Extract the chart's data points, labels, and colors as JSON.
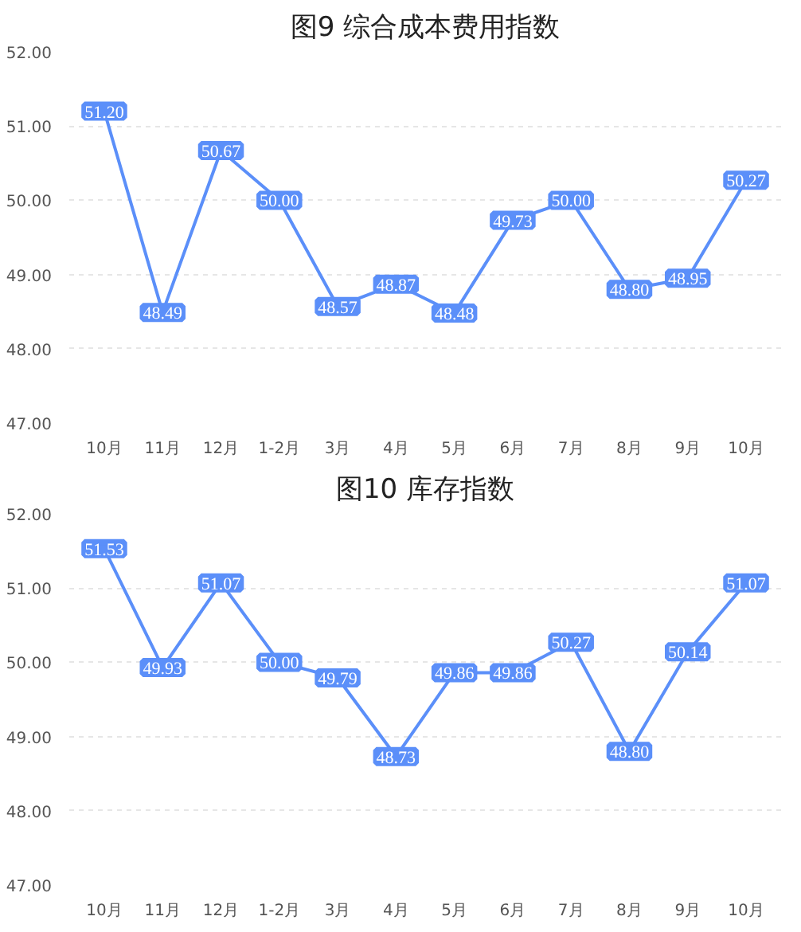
{
  "chart_data": [
    {
      "type": "line",
      "title": "图9 综合成本费用指数",
      "categories": [
        "10月",
        "11月",
        "12月",
        "1-2月",
        "3月",
        "4月",
        "5月",
        "6月",
        "7月",
        "8月",
        "9月",
        "10月"
      ],
      "series": [
        {
          "color": "#5b8ff9",
          "values": [
            51.2,
            48.49,
            50.67,
            50.0,
            48.57,
            48.87,
            48.48,
            49.73,
            50.0,
            48.8,
            48.95,
            50.27
          ],
          "value_labels": [
            "51.20",
            "48.49",
            "50.67",
            "50.00",
            "48.57",
            "48.87",
            "48.48",
            "49.73",
            "50.00",
            "48.80",
            "48.95",
            "50.27"
          ]
        }
      ],
      "ylim": [
        47,
        52
      ],
      "yticks": [
        {
          "value": 47,
          "label": "47.00"
        },
        {
          "value": 48,
          "label": "48.00"
        },
        {
          "value": 49,
          "label": "49.00"
        },
        {
          "value": 50,
          "label": "50.00"
        },
        {
          "value": 51,
          "label": "51.00"
        },
        {
          "value": 52,
          "label": "52.00"
        }
      ],
      "grid": "y",
      "marker": "square",
      "line_style": "solid"
    },
    {
      "type": "line",
      "title": "图10 库存指数",
      "categories": [
        "10月",
        "11月",
        "12月",
        "1-2月",
        "3月",
        "4月",
        "5月",
        "6月",
        "7月",
        "8月",
        "9月",
        "10月"
      ],
      "series": [
        {
          "color": "#5b8ff9",
          "values": [
            51.53,
            49.93,
            51.07,
            50.0,
            49.79,
            48.73,
            49.86,
            49.86,
            50.27,
            48.8,
            50.14,
            51.07
          ],
          "value_labels": [
            "51.53",
            "49.93",
            "51.07",
            "50.00",
            "49.79",
            "48.73",
            "49.86",
            "49.86",
            "50.27",
            "48.80",
            "50.14",
            "51.07"
          ]
        }
      ],
      "ylim": [
        47,
        52
      ],
      "yticks": [
        {
          "value": 47,
          "label": "47.00"
        },
        {
          "value": 48,
          "label": "48.00"
        },
        {
          "value": 49,
          "label": "49.00"
        },
        {
          "value": 50,
          "label": "50.00"
        },
        {
          "value": 51,
          "label": "51.00"
        },
        {
          "value": 52,
          "label": "52.00"
        }
      ],
      "grid": "y",
      "marker": "square",
      "line_style": "solid"
    }
  ]
}
